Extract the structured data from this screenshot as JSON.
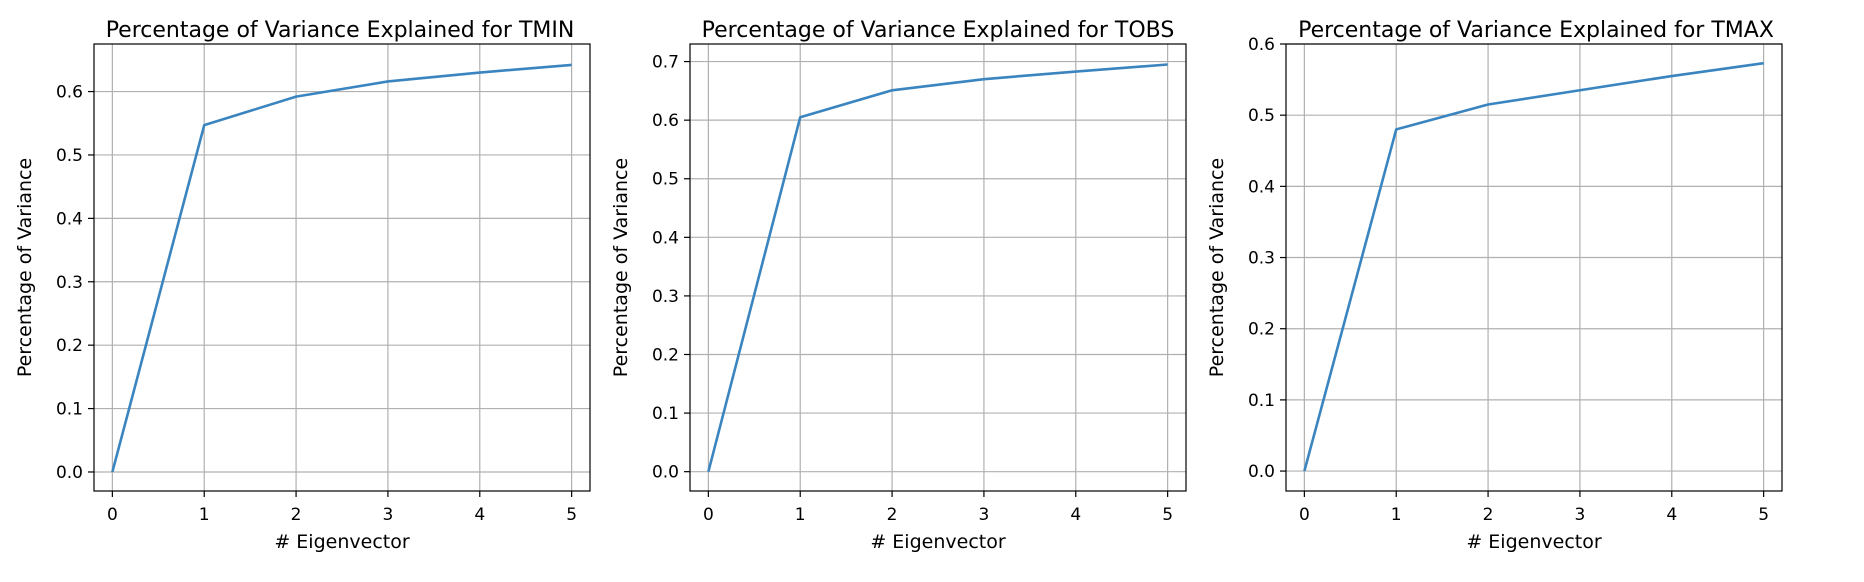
{
  "chart_data": [
    {
      "type": "line",
      "title": "Percentage of Variance Explained for TMIN",
      "xlabel": "# Eigenvector",
      "ylabel": "Percentage of Variance",
      "x": [
        0,
        1,
        2,
        3,
        4,
        5
      ],
      "values": [
        0.0,
        0.547,
        0.592,
        0.616,
        0.63,
        0.642
      ],
      "xlim": [
        -0.2,
        5.2
      ],
      "ylim": [
        -0.03,
        0.675
      ],
      "xticks": [
        "0",
        "1",
        "2",
        "3",
        "4",
        "5"
      ],
      "yticks": [
        "0.0",
        "0.1",
        "0.2",
        "0.3",
        "0.4",
        "0.5",
        "0.6"
      ],
      "grid": true,
      "line_color": "#3a85c0"
    },
    {
      "type": "line",
      "title": "Percentage of Variance Explained for TOBS",
      "xlabel": "# Eigenvector",
      "ylabel": "Percentage of Variance",
      "x": [
        0,
        1,
        2,
        3,
        4,
        5
      ],
      "values": [
        0.0,
        0.605,
        0.651,
        0.67,
        0.683,
        0.695
      ],
      "xlim": [
        -0.2,
        5.2
      ],
      "ylim": [
        -0.033,
        0.73
      ],
      "xticks": [
        "0",
        "1",
        "2",
        "3",
        "4",
        "5"
      ],
      "yticks": [
        "0.0",
        "0.1",
        "0.2",
        "0.3",
        "0.4",
        "0.5",
        "0.6",
        "0.7"
      ],
      "grid": true,
      "line_color": "#3a85c0"
    },
    {
      "type": "line",
      "title": "Percentage of Variance Explained for TMAX",
      "xlabel": "# Eigenvector",
      "ylabel": "Percentage of Variance",
      "x": [
        0,
        1,
        2,
        3,
        4,
        5
      ],
      "values": [
        0.0,
        0.48,
        0.515,
        0.535,
        0.555,
        0.573
      ],
      "xlim": [
        -0.2,
        5.2
      ],
      "ylim": [
        -0.028,
        0.6
      ],
      "xticks": [
        "0",
        "1",
        "2",
        "3",
        "4",
        "5"
      ],
      "yticks": [
        "0.0",
        "0.1",
        "0.2",
        "0.3",
        "0.4",
        "0.5",
        "0.6"
      ],
      "grid": true,
      "line_color": "#3a85c0"
    }
  ]
}
